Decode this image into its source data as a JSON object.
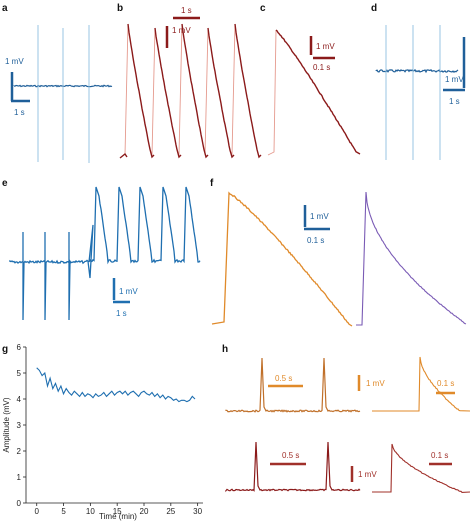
{
  "panels": {
    "a": {
      "letter": "a",
      "sb_v": "1 mV",
      "sb_h": "1 s",
      "color": "#1f5f99",
      "spike_color": "#8ec0e0"
    },
    "b": {
      "letter": "b",
      "sb_v": "1 mV",
      "sb_h": "1 s",
      "color": "#8b1a1a",
      "light_color": "#e59a8e"
    },
    "c": {
      "letter": "c",
      "sb_v": "1 mV",
      "sb_h": "0.1 s",
      "color": "#8b1a1a",
      "light_color": "#e59a8e"
    },
    "d": {
      "letter": "d",
      "sb_v": "1 mV",
      "sb_h": "1 s",
      "color": "#1f5f99",
      "spike_color": "#8ec0e0"
    },
    "e": {
      "letter": "e",
      "sb_v": "1 mV",
      "sb_h": "1 s",
      "color": "#1f6fb0"
    },
    "f": {
      "letter": "f",
      "sb_v": "1 mV",
      "sb_h": "0.1 s",
      "color_left": "#e08a2a",
      "color_right": "#7a5bb5",
      "scalebar_color": "#1f5f99"
    },
    "g": {
      "letter": "g",
      "color": "#1f6fb0"
    },
    "h": {
      "letter": "h",
      "sb_v": "1 mV",
      "sb_h_top_left": "0.5 s",
      "sb_h_top_right": "0.1 s",
      "sb_h_bottom_left": "0.5 s",
      "sb_h_bottom_right": "0.1 s",
      "color_top": "#c0702a",
      "color_bottom": "#8b1a1a",
      "bar_top": "#e08a2a",
      "bar_bottom": "#a0302a"
    }
  },
  "chart_data": {
    "type": "line",
    "panel": "g",
    "xlabel": "Time (min)",
    "ylabel": "Amplitude (mV)",
    "xlim": [
      -2,
      31
    ],
    "ylim": [
      0,
      6
    ],
    "xticks": [
      "0",
      "5",
      "10",
      "15",
      "20",
      "25",
      "30"
    ],
    "yticks": [
      "0",
      "1",
      "2",
      "3",
      "4",
      "5",
      "6"
    ],
    "series": [
      {
        "x": [
          0,
          0.5,
          1,
          1.5,
          2,
          2.5,
          3,
          3.5,
          4,
          4.5,
          5,
          5.5,
          6,
          6.5,
          7,
          7.5,
          8,
          8.5,
          9,
          9.5,
          10,
          10.5,
          11,
          11.5,
          12,
          12.5,
          13,
          13.5,
          14,
          14.5,
          15,
          15.5,
          16,
          16.5,
          17,
          17.5,
          18,
          18.5,
          19,
          19.5,
          20,
          20.5,
          21,
          21.5,
          22,
          22.5,
          23,
          23.5,
          24,
          24.5,
          25,
          25.5,
          26,
          26.5,
          27,
          27.5,
          28,
          28.5,
          29,
          29.5
        ],
        "y": [
          5.2,
          5.1,
          4.9,
          5.0,
          4.5,
          4.8,
          4.4,
          4.6,
          4.3,
          4.5,
          4.2,
          4.4,
          4.25,
          4.15,
          4.3,
          4.2,
          4.1,
          4.25,
          4.1,
          4.2,
          4.15,
          4.05,
          4.2,
          4.1,
          4.15,
          4.25,
          4.1,
          4.2,
          4.3,
          4.15,
          4.25,
          4.3,
          4.2,
          4.3,
          4.15,
          4.25,
          4.3,
          4.2,
          4.1,
          4.25,
          4.3,
          4.2,
          4.15,
          4.25,
          4.1,
          4.2,
          4.05,
          4.15,
          4.0,
          4.1,
          4.05,
          3.95,
          4.0,
          3.9,
          3.95,
          3.95,
          3.9,
          3.95,
          4.1,
          4.0
        ]
      }
    ]
  }
}
